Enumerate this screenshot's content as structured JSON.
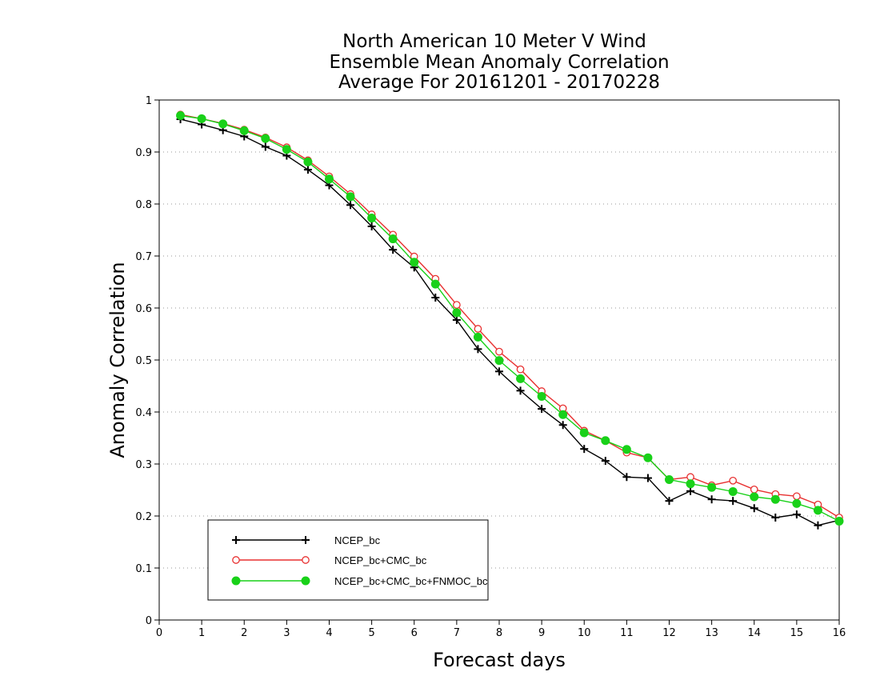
{
  "chart_data": {
    "type": "line",
    "title_lines": [
      "North American 10 Meter V Wind",
      "Ensemble Mean Anomaly Correlation",
      "Average For 20161201 - 20170228"
    ],
    "xlabel": "Forecast days",
    "ylabel": "Anomaly Correlation",
    "xlim": [
      0,
      16
    ],
    "ylim": [
      0,
      1
    ],
    "x_ticks": [
      0,
      1,
      2,
      3,
      4,
      5,
      6,
      7,
      8,
      9,
      10,
      11,
      12,
      13,
      14,
      15,
      16
    ],
    "y_ticks": [
      "0",
      "0.1",
      "0.2",
      "0.3",
      "0.4",
      "0.5",
      "0.6",
      "0.7",
      "0.8",
      "0.9",
      "1"
    ],
    "grid": "horizontal-dotted",
    "legend_position": "bottom-left",
    "x": [
      0.5,
      1,
      1.5,
      2,
      2.5,
      3,
      3.5,
      4,
      4.5,
      5,
      5.5,
      6,
      6.5,
      7,
      7.5,
      8,
      8.5,
      9,
      9.5,
      10,
      10.5,
      11,
      11.5,
      12,
      12.5,
      13,
      13.5,
      14,
      14.5,
      15,
      15.5,
      16
    ],
    "series": [
      {
        "name": "NCEP_bc",
        "color": "#000000",
        "marker": "plus",
        "values": [
          0.963,
          0.953,
          0.942,
          0.93,
          0.91,
          0.893,
          0.866,
          0.836,
          0.798,
          0.757,
          0.712,
          0.678,
          0.62,
          0.577,
          0.521,
          0.478,
          0.441,
          0.406,
          0.375,
          0.329,
          0.306,
          0.275,
          0.273,
          0.229,
          0.248,
          0.232,
          0.229,
          0.215,
          0.197,
          0.203,
          0.182,
          0.192
        ]
      },
      {
        "name": "NCEP_bc+CMC_bc",
        "color": "#e83030",
        "marker": "open-circle",
        "values": [
          0.972,
          0.964,
          0.955,
          0.943,
          0.928,
          0.909,
          0.884,
          0.853,
          0.819,
          0.78,
          0.741,
          0.699,
          0.656,
          0.606,
          0.56,
          0.516,
          0.482,
          0.44,
          0.407,
          0.364,
          0.345,
          0.322,
          0.312,
          0.27,
          0.275,
          0.259,
          0.268,
          0.251,
          0.242,
          0.238,
          0.222,
          0.197
        ]
      },
      {
        "name": "NCEP_bc+CMC_bc+FNMOC_bc",
        "color": "#19d119",
        "marker": "filled-circle",
        "values": [
          0.97,
          0.964,
          0.954,
          0.941,
          0.926,
          0.905,
          0.881,
          0.848,
          0.814,
          0.773,
          0.733,
          0.688,
          0.646,
          0.591,
          0.544,
          0.499,
          0.464,
          0.43,
          0.395,
          0.36,
          0.345,
          0.328,
          0.312,
          0.27,
          0.262,
          0.255,
          0.247,
          0.237,
          0.232,
          0.224,
          0.211,
          0.19
        ]
      }
    ]
  }
}
